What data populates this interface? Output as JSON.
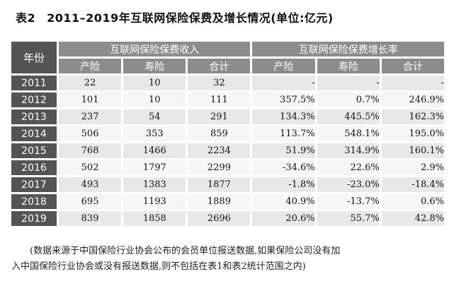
{
  "caption": {
    "number": "表2",
    "title": "2011–2019年互联网保险保费及增长情况(单位:亿元)"
  },
  "table": {
    "corner": "年份",
    "group_income": "互联网保险保费收入",
    "group_growth": "互联网保险保费增长率",
    "sub_headers": [
      "产险",
      "寿险",
      "合计",
      "产险",
      "寿险",
      "合计"
    ],
    "rows": [
      {
        "year": "2011",
        "values": [
          "22",
          "10",
          "32",
          "-",
          "-",
          "-"
        ]
      },
      {
        "year": "2012",
        "values": [
          "101",
          "10",
          "111",
          "357.5%",
          "0.7%",
          "246.9%"
        ]
      },
      {
        "year": "2013",
        "values": [
          "237",
          "54",
          "291",
          "134.3%",
          "445.5%",
          "162.3%"
        ]
      },
      {
        "year": "2014",
        "values": [
          "506",
          "353",
          "859",
          "113.7%",
          "548.1%",
          "195.0%"
        ]
      },
      {
        "year": "2015",
        "values": [
          "768",
          "1466",
          "2234",
          "51.9%",
          "314.9%",
          "160.1%"
        ]
      },
      {
        "year": "2016",
        "values": [
          "502",
          "1797",
          "2299",
          "-34.6%",
          "22.6%",
          "2.9%"
        ]
      },
      {
        "year": "2017",
        "values": [
          "493",
          "1383",
          "1877",
          "-1.8%",
          "-23.0%",
          "-18.4%"
        ]
      },
      {
        "year": "2018",
        "values": [
          "695",
          "1193",
          "1889",
          "40.9%",
          "-13.7%",
          "0.6%"
        ]
      },
      {
        "year": "2019",
        "values": [
          "839",
          "1858",
          "2696",
          "20.6%",
          "55.7%",
          "42.8%"
        ]
      }
    ]
  },
  "note": {
    "line1": "(数据来源于中国保险行业协会公布的会员单位报送数据,如果保险公司没有加",
    "line2": "入中国保险行业协会或没有报送数据,则不包括在表1和表2统计范围之内)"
  }
}
